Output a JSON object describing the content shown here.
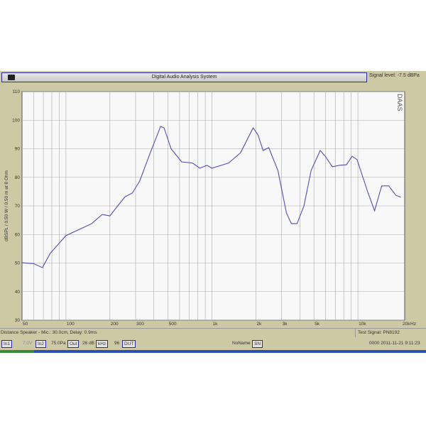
{
  "window": {
    "title": "Digital Audio Analysis System",
    "signal_level": "Signal level: -7.5 dBPa",
    "brand": "DAAS"
  },
  "chart_data": {
    "type": "line",
    "title": "",
    "xlabel": "Hz",
    "ylabel": "dBSPL / 0.50 W / 0.50 m at 8 Ohm",
    "xscale": "log",
    "xlim": [
      50,
      20000
    ],
    "ylim": [
      30,
      110
    ],
    "grid": true,
    "x_ticks": [
      50,
      100,
      200,
      300,
      500,
      1000,
      2000,
      3000,
      5000,
      10000,
      20000
    ],
    "x_tick_labels": [
      "50",
      "100",
      "200",
      "300",
      "500",
      "1k",
      "2k",
      "3k",
      "5k",
      "10k",
      "20k"
    ],
    "y_ticks": [
      30,
      40,
      50,
      60,
      70,
      80,
      90,
      100,
      110
    ],
    "y_tick_labels": [
      "30",
      "40",
      "50",
      "60",
      "70",
      "80",
      "90",
      "100",
      "110"
    ],
    "line_color": "#5050b0",
    "series": [
      {
        "x": [
          50,
          60,
          69,
          78,
          100,
          150,
          177,
          200,
          226,
          254,
          285,
          320,
          378,
          445,
          470,
          525,
          620,
          737,
          825,
          925,
          1000,
          1300,
          1570,
          1915,
          2070,
          2240,
          2450,
          2830,
          3240,
          3500,
          3830,
          4270,
          4780,
          5520,
          5970,
          6680,
          7460,
          8340,
          9130,
          9870,
          11650,
          13000,
          14550,
          16260,
          18200,
          19700
        ],
        "y": [
          50.1,
          49.8,
          48.4,
          53.4,
          59.6,
          63.8,
          67,
          66.5,
          70,
          73.2,
          74.5,
          78.7,
          88.6,
          97.8,
          97.3,
          90,
          85.4,
          85,
          83.2,
          84.2,
          83.2,
          85,
          88.6,
          97.3,
          94.8,
          89.4,
          90.4,
          82.4,
          67.5,
          63.8,
          63.8,
          70,
          82.4,
          89.4,
          87.4,
          83.7,
          84.2,
          84.4,
          87.4,
          86.2,
          75,
          68.3,
          77,
          77,
          73.7,
          73
        ]
      }
    ]
  },
  "status": {
    "distance": "Distance Speaker - Mic.: 30.0cm, Delay: 0.9ms",
    "test_signal": "Test Signal: PN8192",
    "in1": "In1",
    "volt": "7.0V",
    "in2": "In2",
    "pa": "75.0Pa",
    "out": "Out",
    "db": "26 dB",
    "khz": "kHz",
    "n96": "96",
    "dut": "DUT",
    "name": "NoName",
    "sn": "SN",
    "datetime": "0000 2011-11-21  9:11:23"
  }
}
